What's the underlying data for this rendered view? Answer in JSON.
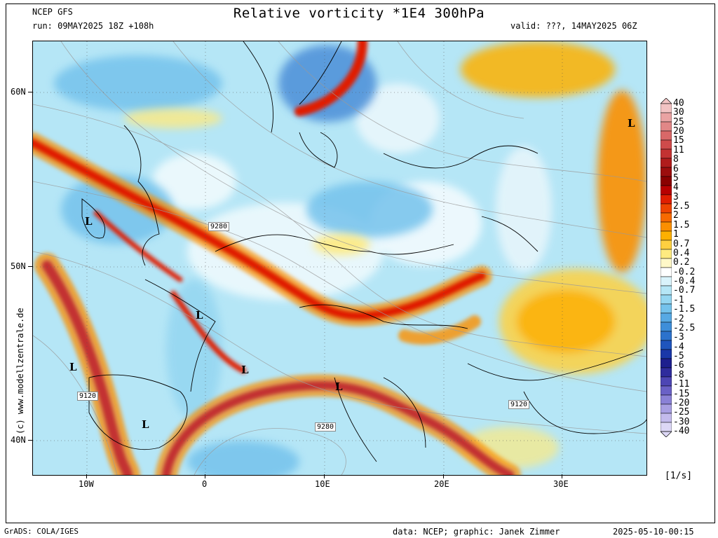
{
  "header": {
    "model": "NCEP GFS",
    "title": "Relative vorticity *1E4 300hPa",
    "run": "run: 09MAY2025 18Z +108h",
    "valid": "valid: ???, 14MAY2025 06Z"
  },
  "axes": {
    "lat_labels": [
      "60N",
      "50N",
      "40N"
    ],
    "lon_labels": [
      "10W",
      "0",
      "10E",
      "20E",
      "30E"
    ]
  },
  "map": {
    "low_marks": [
      "L",
      "L",
      "L",
      "L",
      "L",
      "L",
      "L"
    ],
    "height_labels": [
      "9280",
      "9120",
      "9280",
      "9120"
    ]
  },
  "colorbar": {
    "levels": [
      "40",
      "30",
      "25",
      "20",
      "15",
      "11",
      "8",
      "6",
      "5",
      "4",
      "3",
      "2.5",
      "2",
      "1.5",
      "1",
      "0.7",
      "0.4",
      "0.2",
      "-0.2",
      "-0.4",
      "-0.7",
      "-1",
      "-1.5",
      "-2",
      "-2.5",
      "-3",
      "-4",
      "-5",
      "-6",
      "-8",
      "-11",
      "-15",
      "-20",
      "-25",
      "-30",
      "-40"
    ],
    "unit": "[1/s]",
    "colors": [
      "#f2c3c3",
      "#e9a3a3",
      "#e18787",
      "#d86868",
      "#cf4b4b",
      "#c33232",
      "#b01c1c",
      "#9c0d0d",
      "#8a0000",
      "#b80000",
      "#e01e00",
      "#ee4400",
      "#f76a00",
      "#fb8f00",
      "#fdb000",
      "#fed040",
      "#feea80",
      "#fff8c8",
      "#ffffff",
      "#d9f3fb",
      "#b5e6f6",
      "#94d6f1",
      "#74c2ec",
      "#57a9e4",
      "#3e8ed9",
      "#2c72cc",
      "#1f55bd",
      "#1a37a8",
      "#1d1f8e",
      "#2f2c9d",
      "#4d46b4",
      "#6a61c6",
      "#8a81d6",
      "#a89fe2",
      "#c3bbec",
      "#dcd7f5"
    ]
  },
  "credits": {
    "side": "(c) www.modellzentrale.de",
    "grads": "GrADS: COLA/IGES",
    "data": "data: NCEP; graphic: Janek Zimmer",
    "timestamp": "2025-05-10-00:15"
  }
}
